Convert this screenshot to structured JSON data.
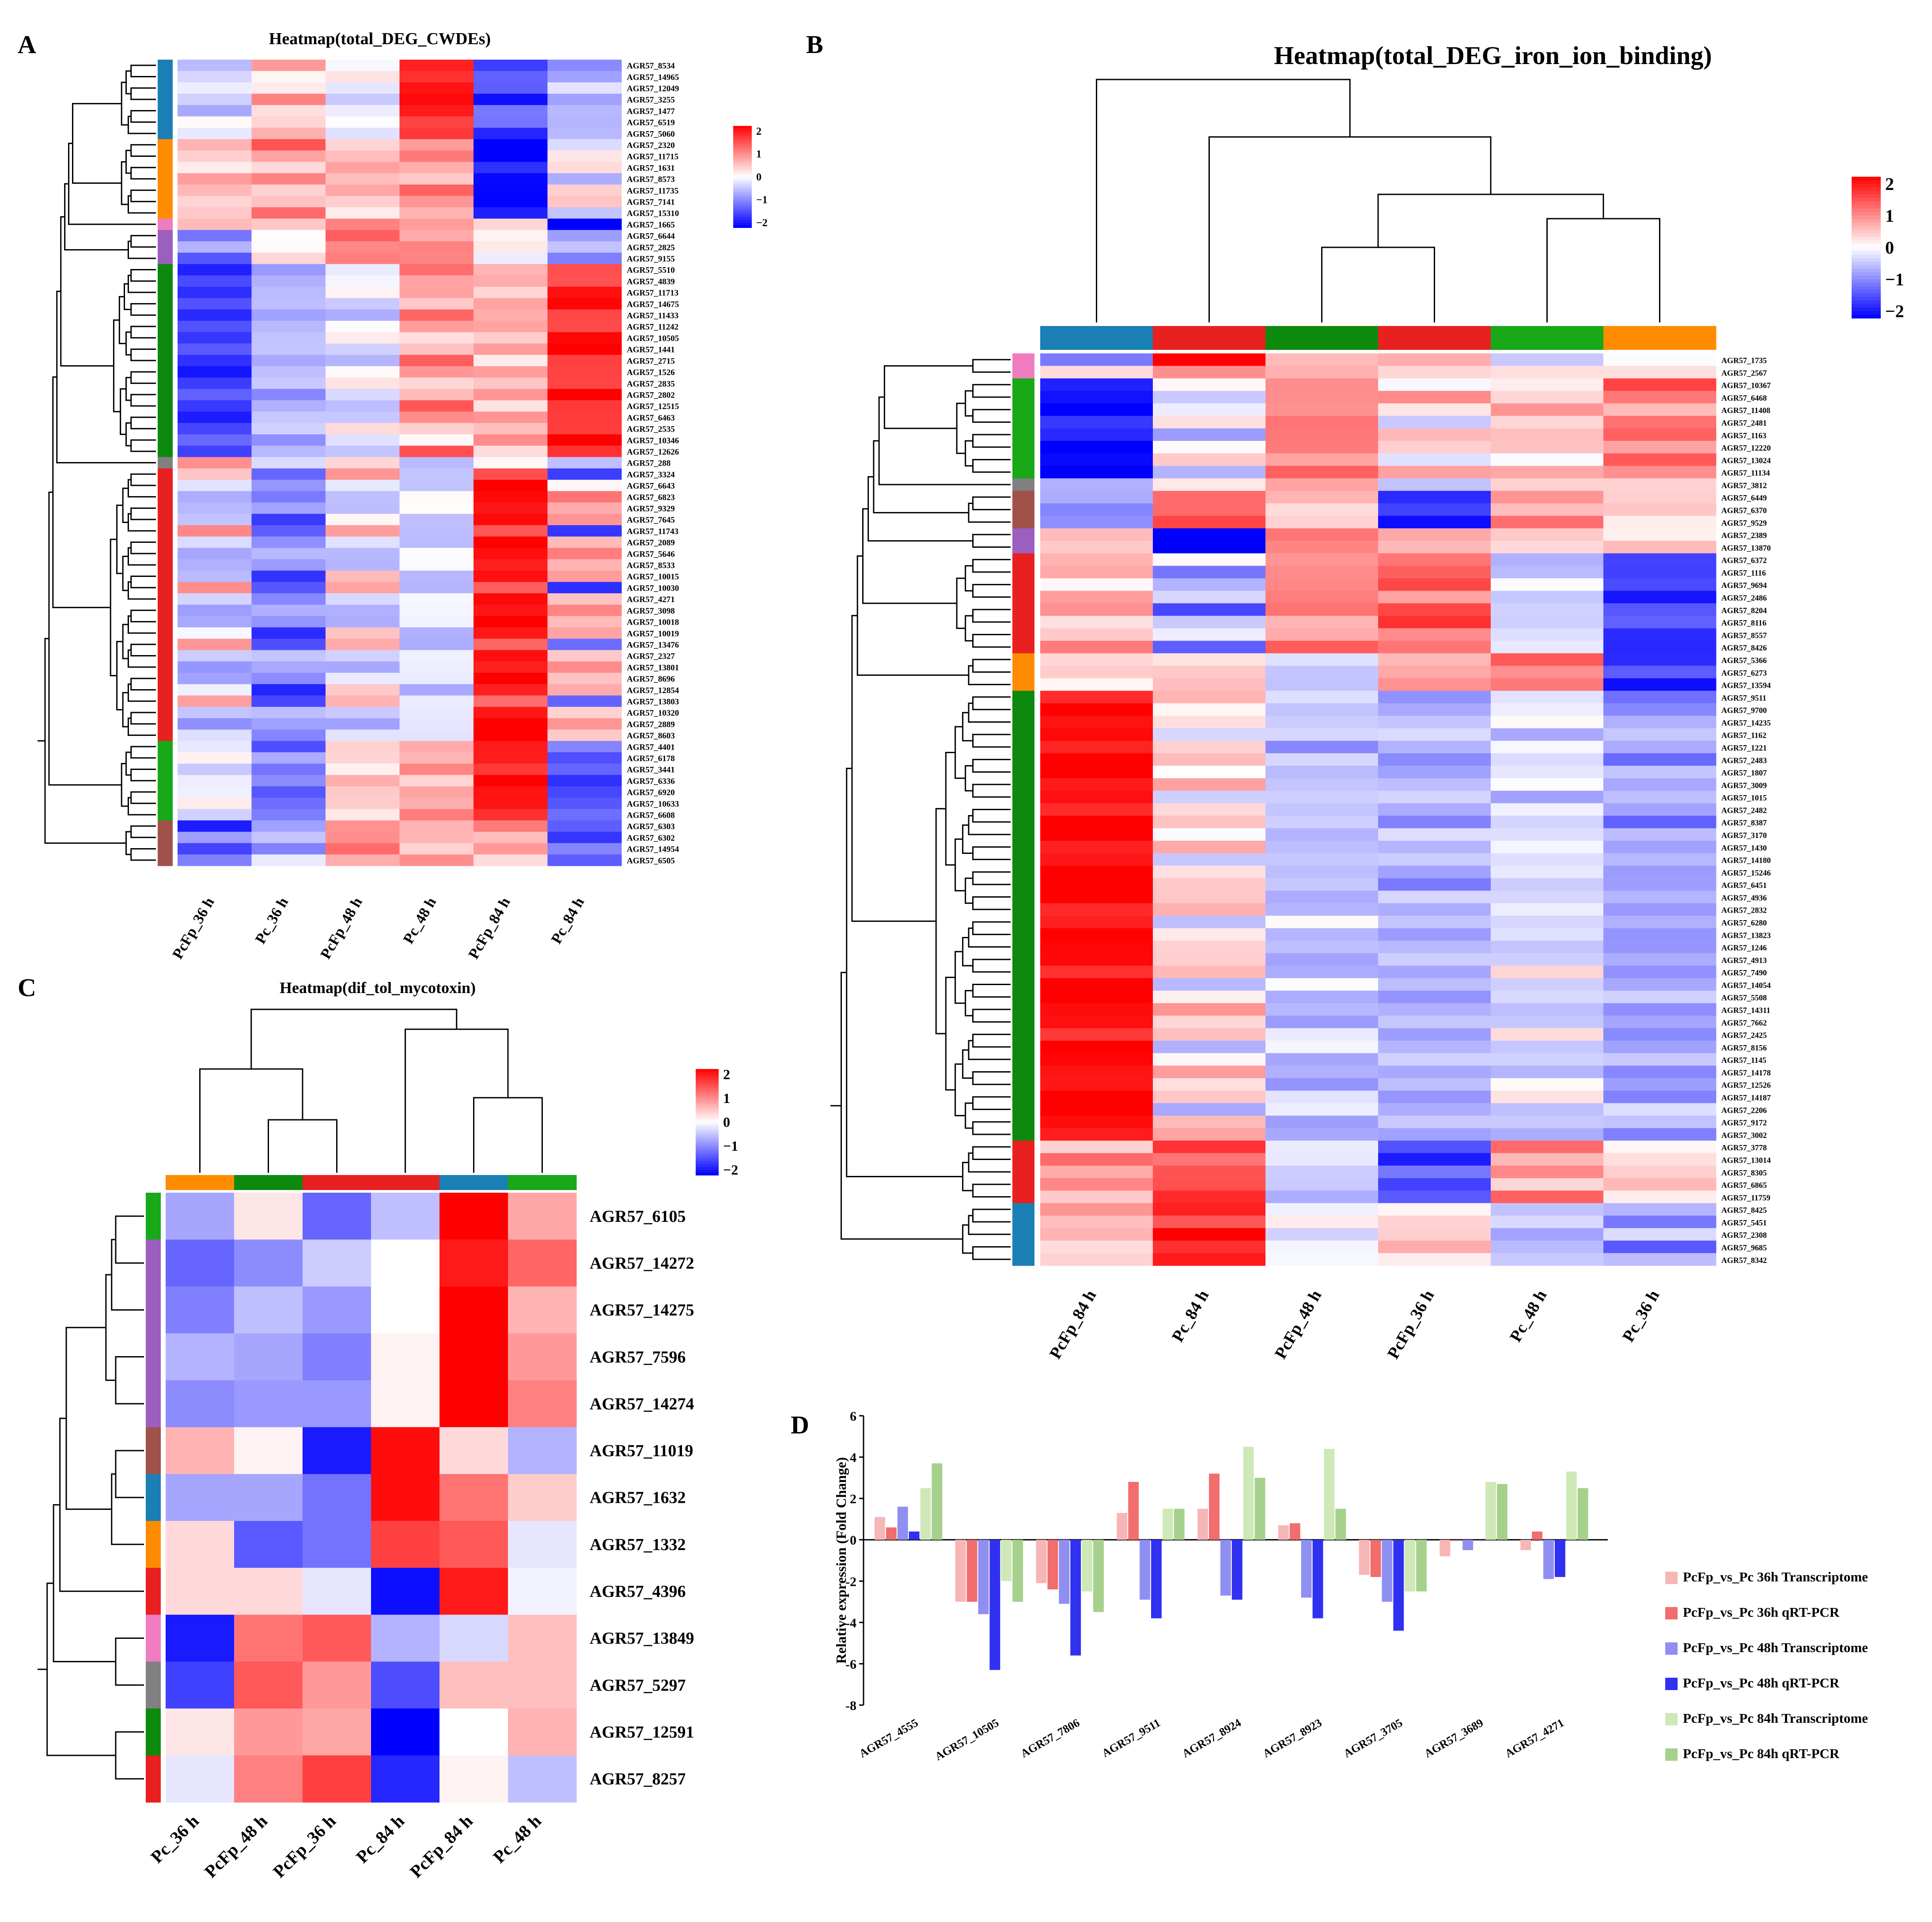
{
  "colors": {
    "neg": "#0000ff",
    "mid": "#ffffff",
    "pos": "#ff0000",
    "dendro": "#000000",
    "groups": {
      "blue": "#1a7fb5",
      "orange": "#ff8c00",
      "pink": "#f07cc0",
      "purple": "#9b5fc0",
      "green": "#0d8a0d",
      "lgreen": "#18a818",
      "gray": "#808080",
      "brown": "#a0524a",
      "red": "#e82020"
    },
    "bars": [
      "#f7b6b6",
      "#f26d6d",
      "#8f8ff2",
      "#3030f0",
      "#cfe8b8",
      "#a6d18c"
    ]
  },
  "chart_data": [
    {
      "panel": "A",
      "type": "heatmap",
      "title": "Heatmap(total_DEG_CWDEs)",
      "columns": [
        "PcFp_36 h",
        "Pc_36 h",
        "PcFp_48 h",
        "Pc_48 h",
        "PcFp_84 h",
        "Pc_84 h"
      ],
      "legend_ticks": [
        "2",
        "1",
        "0",
        "−1",
        "−2"
      ],
      "value_range": [
        -2,
        2
      ],
      "row_groups": [
        {
          "color": "blue",
          "rows": [
            "AGR57_8534",
            "AGR57_14965",
            "AGR57_12049",
            "AGR57_3255",
            "AGR57_1477",
            "AGR57_6519",
            "AGR57_5060"
          ],
          "pattern": [
            [
              -0.3,
              0.8,
              -0.3,
              1.8,
              -1.7,
              -0.8
            ],
            [
              -0.5,
              0.2,
              0.1,
              1.8,
              -1.3,
              -0.5
            ],
            [
              -0.2,
              0.4,
              -0.2,
              1.6,
              -1.2,
              -0.4
            ]
          ]
        },
        {
          "color": "orange",
          "rows": [
            "AGR57_2320",
            "AGR57_11715",
            "AGR57_1631",
            "AGR57_8573",
            "AGR57_11735",
            "AGR57_7141",
            "AGR57_15310"
          ],
          "pattern": [
            [
              0.6,
              1.1,
              0.4,
              0.6,
              -2,
              -0.4
            ],
            [
              0.5,
              0.6,
              0.7,
              1.0,
              -1.9,
              0.2
            ],
            [
              0.4,
              0.3,
              0.5,
              0.7,
              -1.8,
              0.4
            ]
          ]
        },
        {
          "color": "pink",
          "rows": [
            "AGR57_1665"
          ],
          "pattern": [
            [
              0.3,
              0.5,
              0.8,
              0.9,
              0.2,
              -2
            ]
          ]
        },
        {
          "color": "purple",
          "rows": [
            "AGR57_6644",
            "AGR57_2825",
            "AGR57_9155"
          ],
          "pattern": [
            [
              -1.2,
              0.2,
              1.2,
              0.9,
              0.1,
              -1.0
            ],
            [
              -0.6,
              -0.2,
              1.0,
              0.8,
              0.3,
              -0.6
            ]
          ]
        },
        {
          "color": "green",
          "rows": [
            "AGR57_5510",
            "AGR57_4839",
            "AGR57_11713",
            "AGR57_14675",
            "AGR57_11433",
            "AGR57_11242",
            "AGR57_10505",
            "AGR57_1441",
            "AGR57_2715",
            "AGR57_1526",
            "AGR57_2835",
            "AGR57_2802",
            "AGR57_12515",
            "AGR57_6463",
            "AGR57_2535",
            "AGR57_10346",
            "AGR57_12626"
          ],
          "pattern": [
            [
              -1.5,
              -0.8,
              -0.4,
              1.2,
              0.4,
              1.5
            ],
            [
              -1.6,
              -0.5,
              -0.2,
              0.9,
              0.6,
              1.6
            ],
            [
              -1.7,
              -0.3,
              0.1,
              0.5,
              0.4,
              1.7
            ],
            [
              -1.3,
              -0.7,
              -0.3,
              0.3,
              0.9,
              1.9
            ]
          ]
        },
        {
          "color": "gray",
          "rows": [
            "AGR57_288"
          ],
          "pattern": [
            [
              1.0,
              -0.4,
              0.5,
              -0.6,
              0.3,
              -0.5
            ]
          ]
        },
        {
          "color": "red",
          "rows": [
            "AGR57_3324",
            "AGR57_6643",
            "AGR57_6823",
            "AGR57_9329",
            "AGR57_7645",
            "AGR57_11743",
            "AGR57_2089",
            "AGR57_5646",
            "AGR57_8533",
            "AGR57_10015",
            "AGR57_10030",
            "AGR57_4271",
            "AGR57_3098",
            "AGR57_10018",
            "AGR57_10019",
            "AGR57_13476",
            "AGR57_2327",
            "AGR57_13801",
            "AGR57_8696",
            "AGR57_12854",
            "AGR57_13803",
            "AGR57_10320",
            "AGR57_2889",
            "AGR57_8603"
          ],
          "pattern": [
            [
              0.7,
              -1.2,
              0.6,
              -0.4,
              1.2,
              -1.4
            ],
            [
              -0.4,
              -0.7,
              -0.3,
              -0.3,
              2,
              0.3
            ],
            [
              -0.7,
              -0.8,
              -0.5,
              -0.2,
              2,
              0.9
            ],
            [
              -0.5,
              -0.9,
              -0.4,
              -0.1,
              2,
              0.6
            ],
            [
              -0.3,
              -1.6,
              0.3,
              -0.5,
              1.7,
              0.9
            ]
          ]
        },
        {
          "color": "lgreen",
          "rows": [
            "AGR57_4401",
            "AGR57_6178",
            "AGR57_3441",
            "AGR57_6336",
            "AGR57_6920",
            "AGR57_10633",
            "AGR57_6608"
          ],
          "pattern": [
            [
              -0.3,
              -1.2,
              0.3,
              0.9,
              1.8,
              -1.2
            ],
            [
              0.1,
              -0.9,
              0.4,
              0.4,
              1.9,
              -1.5
            ]
          ]
        },
        {
          "color": "brown",
          "rows": [
            "AGR57_6303",
            "AGR57_6302",
            "AGR57_14954",
            "AGR57_6505"
          ],
          "pattern": [
            [
              -1.6,
              -0.8,
              1.1,
              0.6,
              0.8,
              -1.2
            ],
            [
              -1.0,
              -0.4,
              0.7,
              0.7,
              0.4,
              -1.4
            ]
          ]
        }
      ]
    },
    {
      "panel": "B",
      "type": "heatmap",
      "title": "Heatmap(total_DEG_iron_ion_binding)",
      "columns": [
        "PcFp_84 h",
        "Pc_84 h",
        "PcFp_48 h",
        "PcFp_36 h",
        "Pc_48 h",
        "Pc_36 h"
      ],
      "column_colors": [
        "blue",
        "red",
        "green",
        "red",
        "lgreen",
        "orange"
      ],
      "legend_ticks": [
        "2",
        "1",
        "0",
        "−1",
        "−2"
      ],
      "value_range": [
        -2,
        2
      ],
      "row_groups": [
        {
          "color": "pink",
          "rows": [
            "AGR57_1735",
            "AGR57_2567"
          ],
          "pattern": [
            [
              -0.8,
              2,
              0.3,
              0.7,
              -0.6,
              0.1
            ],
            [
              0.1,
              1.0,
              0.5,
              0.5,
              0.2,
              0.5
            ]
          ]
        },
        {
          "color": "lgreen",
          "rows": [
            "AGR57_10367",
            "AGR57_6468",
            "AGR57_11408",
            "AGR57_2481",
            "AGR57_1163",
            "AGR57_12220",
            "AGR57_13024",
            "AGR57_11134"
          ],
          "pattern": [
            [
              -1.8,
              0.3,
              0.9,
              -0.3,
              0.2,
              1.3
            ],
            [
              -1.8,
              -0.6,
              1.0,
              0.8,
              0.5,
              1.0
            ],
            [
              -2,
              -0.2,
              1.1,
              0.2,
              0.6,
              0.6
            ]
          ]
        },
        {
          "color": "gray",
          "rows": [
            "AGR57_3812"
          ],
          "pattern": [
            [
              -0.8,
              0.3,
              0.6,
              -0.3,
              0.3,
              0.6
            ]
          ]
        },
        {
          "color": "brown",
          "rows": [
            "AGR57_6449",
            "AGR57_6370",
            "AGR57_9529"
          ],
          "pattern": [
            [
              -0.7,
              1.4,
              0.6,
              -1.9,
              0.9,
              0.2
            ],
            [
              -0.9,
              1.0,
              0.4,
              -1.6,
              0.7,
              0.4
            ]
          ]
        },
        {
          "color": "purple",
          "rows": [
            "AGR57_2389",
            "AGR57_13870"
          ],
          "pattern": [
            [
              0.3,
              -2,
              0.9,
              0.8,
              0.3,
              0.3
            ]
          ]
        },
        {
          "color": "red",
          "rows": [
            "AGR57_6372",
            "AGR57_1116",
            "AGR57_9694",
            "AGR57_2486",
            "AGR57_8204",
            "AGR57_8116",
            "AGR57_8557",
            "AGR57_8426"
          ],
          "pattern": [
            [
              0.6,
              -0.2,
              0.9,
              0.9,
              -0.5,
              -1.6
            ],
            [
              0.8,
              -1.2,
              1.1,
              1.2,
              -0.3,
              -1.5
            ],
            [
              0.3,
              -0.6,
              0.7,
              1.5,
              -0.2,
              -1.3
            ]
          ]
        },
        {
          "color": "orange",
          "rows": [
            "AGR57_5366",
            "AGR57_6273",
            "AGR57_13594"
          ],
          "pattern": [
            [
              0.2,
              0.4,
              -0.3,
              0.8,
              1.3,
              -1.9
            ],
            [
              0.4,
              0.2,
              -0.4,
              0.5,
              1.0,
              -1.4
            ]
          ]
        },
        {
          "color": "green",
          "rows": [
            "AGR57_9511",
            "AGR57_9700",
            "AGR57_14235",
            "AGR57_1162",
            "AGR57_1221",
            "AGR57_2483",
            "AGR57_1807",
            "AGR57_3009",
            "AGR57_1015",
            "AGR57_2482",
            "AGR57_8387",
            "AGR57_3170",
            "AGR57_1430",
            "AGR57_14180",
            "AGR57_15246",
            "AGR57_6451",
            "AGR57_4936",
            "AGR57_2832",
            "AGR57_6280",
            "AGR57_13823",
            "AGR57_1246",
            "AGR57_4913",
            "AGR57_7490",
            "AGR57_14054",
            "AGR57_5508",
            "AGR57_14311",
            "AGR57_7662",
            "AGR57_2425",
            "AGR57_8156",
            "AGR57_1145",
            "AGR57_14178",
            "AGR57_12526",
            "AGR57_14187",
            "AGR57_2206",
            "AGR57_9172",
            "AGR57_3002"
          ],
          "pattern": [
            [
              1.9,
              0.6,
              -0.5,
              -0.8,
              -0.4,
              -1.0
            ],
            [
              2,
              0.2,
              -0.6,
              -0.5,
              -0.2,
              -0.7
            ],
            [
              1.8,
              0.5,
              -0.4,
              -0.7,
              0.1,
              -0.8
            ],
            [
              2,
              -0.5,
              -0.2,
              -0.4,
              -0.5,
              -0.5
            ],
            [
              1.9,
              0.3,
              -0.7,
              -0.6,
              -0.3,
              -0.6
            ]
          ]
        },
        {
          "color": "red",
          "rows": [
            "AGR57_3778",
            "AGR57_13014",
            "AGR57_8305",
            "AGR57_6865",
            "AGR57_11759"
          ],
          "pattern": [
            [
              0.6,
              1.6,
              -0.4,
              -1.3,
              1.0,
              0.2
            ],
            [
              1.0,
              1.2,
              -0.3,
              -1.6,
              0.5,
              0.5
            ]
          ]
        },
        {
          "color": "blue",
          "rows": [
            "AGR57_8425",
            "AGR57_5451",
            "AGR57_2308",
            "AGR57_9685",
            "AGR57_8342"
          ],
          "pattern": [
            [
              0.6,
              1.8,
              -0.3,
              0.2,
              -0.6,
              -0.4
            ],
            [
              0.4,
              1.5,
              0.1,
              0.6,
              -0.3,
              -1.3
            ]
          ]
        }
      ]
    },
    {
      "panel": "C",
      "type": "heatmap",
      "title": "Heatmap(dif_tol_mycotoxin)",
      "columns": [
        "Pc_36 h",
        "PcFp_48 h",
        "PcFp_36 h",
        "Pc_84 h",
        "PcFp_84 h",
        "Pc_48 h"
      ],
      "column_colors": [
        "orange",
        "green",
        "red",
        "red",
        "blue",
        "lgreen"
      ],
      "legend_ticks": [
        "2",
        "1",
        "0",
        "−1",
        "−2"
      ],
      "value_range": [
        -2,
        2
      ],
      "rows": [
        "AGR57_6105",
        "AGR57_14272",
        "AGR57_14275",
        "AGR57_7596",
        "AGR57_14274",
        "AGR57_11019",
        "AGR57_1632",
        "AGR57_1332",
        "AGR57_4396",
        "AGR57_13849",
        "AGR57_5297",
        "AGR57_12591",
        "AGR57_8257"
      ],
      "row_colors": [
        "lgreen",
        "purple",
        "purple",
        "purple",
        "purple",
        "brown",
        "blue",
        "orange",
        "red",
        "pink",
        "gray",
        "green",
        "red"
      ],
      "values": [
        [
          -0.7,
          0.2,
          -1.2,
          -0.5,
          2.0,
          0.7
        ],
        [
          -1.2,
          -0.9,
          -0.4,
          0.0,
          1.8,
          1.2
        ],
        [
          -1.0,
          -0.5,
          -0.8,
          0.0,
          2.0,
          0.6
        ],
        [
          -0.6,
          -0.7,
          -1.0,
          0.1,
          2.0,
          0.8
        ],
        [
          -0.9,
          -0.8,
          -0.8,
          0.1,
          2.0,
          1.0
        ],
        [
          0.6,
          0.1,
          -1.8,
          1.9,
          0.3,
          -0.6
        ],
        [
          -0.7,
          -0.7,
          -1.1,
          1.9,
          1.1,
          0.4
        ],
        [
          0.3,
          -1.3,
          -1.1,
          1.5,
          1.3,
          -0.2
        ],
        [
          0.3,
          0.3,
          -0.2,
          -1.9,
          1.8,
          -0.1
        ],
        [
          -1.8,
          1.1,
          1.3,
          -0.6,
          -0.3,
          0.5
        ],
        [
          -1.5,
          1.3,
          0.8,
          -1.4,
          0.5,
          0.5
        ],
        [
          0.2,
          0.8,
          0.7,
          -2.0,
          0.0,
          0.6
        ],
        [
          -0.2,
          1.0,
          1.5,
          -1.7,
          0.1,
          -0.5
        ]
      ]
    },
    {
      "panel": "D",
      "type": "bar",
      "ylabel": "Relative expression (Fold Change)",
      "ylim": [
        -8,
        6
      ],
      "yticks": [
        "6",
        "4",
        "2",
        "0",
        "-2",
        "-4",
        "-6",
        "-8"
      ],
      "categories": [
        "AGR57_4555",
        "AGR57_10505",
        "AGR57_7806",
        "AGR57_9511",
        "AGR57_8924",
        "AGR57_8923",
        "AGR57_3705",
        "AGR57_3689",
        "AGR57_4271"
      ],
      "series": [
        {
          "name": "PcFp_vs_Pc 36h Transcriptome",
          "values": [
            1.1,
            -3.0,
            -2.1,
            1.3,
            1.5,
            0.7,
            -1.7,
            -0.8,
            -0.5
          ]
        },
        {
          "name": "PcFp_vs_Pc 36h qRT-PCR",
          "values": [
            0.6,
            -3.0,
            -2.4,
            2.8,
            3.2,
            0.8,
            -1.8,
            0.0,
            0.4
          ]
        },
        {
          "name": "PcFp_vs_Pc 48h Transcriptome",
          "values": [
            1.6,
            -3.6,
            -3.1,
            -2.9,
            -2.7,
            -2.8,
            -3.0,
            -0.5,
            -1.9
          ]
        },
        {
          "name": "PcFp_vs_Pc 48h qRT-PCR",
          "values": [
            0.4,
            -6.3,
            -5.6,
            -3.8,
            -2.9,
            -3.8,
            -4.4,
            0.0,
            -1.8
          ]
        },
        {
          "name": "PcFp_vs_Pc 84h Transcriptome",
          "values": [
            2.5,
            -2.0,
            -2.5,
            1.5,
            4.5,
            4.4,
            -2.5,
            2.8,
            3.3
          ]
        },
        {
          "name": "PcFp_vs_Pc 84h qRT-PCR",
          "values": [
            3.7,
            -3.0,
            -3.5,
            1.5,
            3.0,
            1.5,
            -2.5,
            2.7,
            2.5
          ]
        }
      ]
    }
  ]
}
